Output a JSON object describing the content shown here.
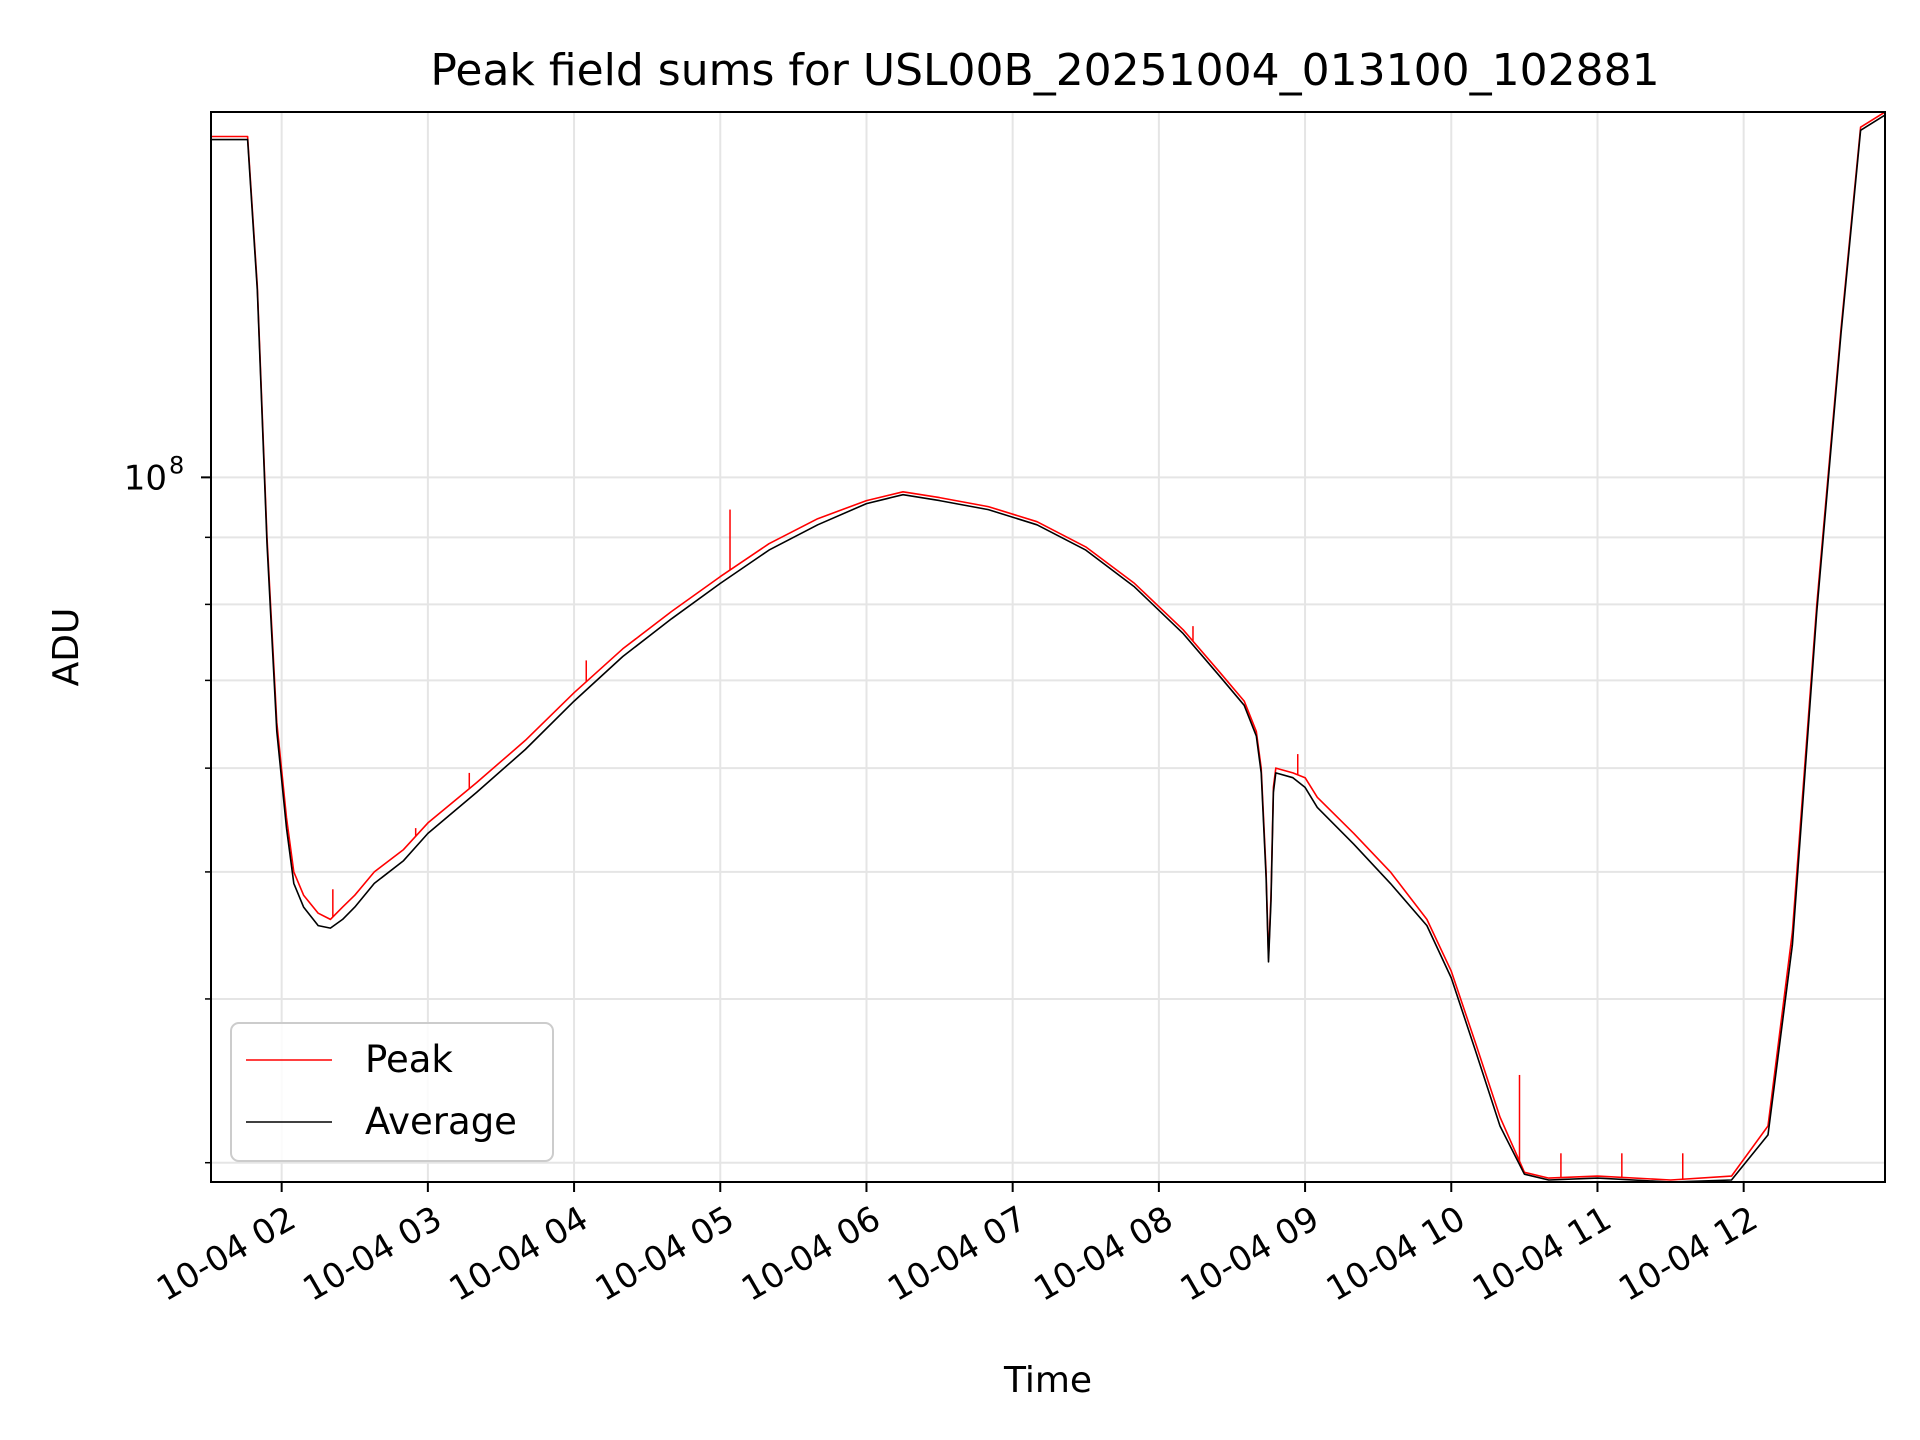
{
  "chart_data": {
    "type": "line",
    "title": "Peak field sums for USL00B_20251004_013100_102881",
    "xlabel": "Time",
    "ylabel": "ADU",
    "yscale": "log",
    "ylim": [
      29000000,
      190000000
    ],
    "xlim": [
      "2025-10-04T01:31",
      "2025-10-04T12:58"
    ],
    "grid": true,
    "legend": {
      "position": "lower-left",
      "entries": [
        "Peak",
        "Average"
      ]
    },
    "x_ticks": [
      {
        "t": "2025-10-04T02:00",
        "label": "10-04 02"
      },
      {
        "t": "2025-10-04T03:00",
        "label": "10-04 03"
      },
      {
        "t": "2025-10-04T04:00",
        "label": "10-04 04"
      },
      {
        "t": "2025-10-04T05:00",
        "label": "10-04 05"
      },
      {
        "t": "2025-10-04T06:00",
        "label": "10-04 06"
      },
      {
        "t": "2025-10-04T07:00",
        "label": "10-04 07"
      },
      {
        "t": "2025-10-04T08:00",
        "label": "10-04 08"
      },
      {
        "t": "2025-10-04T09:00",
        "label": "10-04 09"
      },
      {
        "t": "2025-10-04T10:00",
        "label": "10-04 10"
      },
      {
        "t": "2025-10-04T11:00",
        "label": "10-04 11"
      },
      {
        "t": "2025-10-04T12:00",
        "label": "10-04 12"
      }
    ],
    "y_major_ticks": [
      {
        "v": 100000000,
        "base": "10",
        "exp": "8"
      }
    ],
    "y_minor_ticks": [
      30000000,
      40000000,
      50000000,
      60000000,
      70000000,
      80000000,
      90000000,
      200000000
    ],
    "series": [
      {
        "name": "Peak",
        "color": "#ff0000",
        "points": [
          [
            "2025-10-04T01:31",
            182000000
          ],
          [
            "2025-10-04T01:43",
            182000000
          ],
          [
            "2025-10-04T01:46",
            182000000
          ],
          [
            "2025-10-04T01:50",
            140000000
          ],
          [
            "2025-10-04T01:54",
            90000000
          ],
          [
            "2025-10-04T01:58",
            65000000
          ],
          [
            "2025-10-04T02:02",
            55000000
          ],
          [
            "2025-10-04T02:05",
            50000000
          ],
          [
            "2025-10-04T02:09",
            48000000
          ],
          [
            "2025-10-04T02:15",
            46500000
          ],
          [
            "2025-10-04T02:20",
            46000000
          ],
          [
            "2025-10-04T02:25",
            47000000
          ],
          [
            "2025-10-04T02:30",
            48000000
          ],
          [
            "2025-10-04T02:38",
            50000000
          ],
          [
            "2025-10-04T02:50",
            52000000
          ],
          [
            "2025-10-04T03:00",
            54500000
          ],
          [
            "2025-10-04T03:20",
            58500000
          ],
          [
            "2025-10-04T03:40",
            63000000
          ],
          [
            "2025-10-04T04:00",
            68500000
          ],
          [
            "2025-10-04T04:20",
            74000000
          ],
          [
            "2025-10-04T04:40",
            79000000
          ],
          [
            "2025-10-04T05:00",
            84000000
          ],
          [
            "2025-10-04T05:20",
            89000000
          ],
          [
            "2025-10-04T05:40",
            93000000
          ],
          [
            "2025-10-04T06:00",
            96000000
          ],
          [
            "2025-10-04T06:15",
            97500000
          ],
          [
            "2025-10-04T06:30",
            96500000
          ],
          [
            "2025-10-04T06:50",
            95000000
          ],
          [
            "2025-10-04T07:10",
            92500000
          ],
          [
            "2025-10-04T07:30",
            88500000
          ],
          [
            "2025-10-04T07:50",
            83000000
          ],
          [
            "2025-10-04T08:10",
            76500000
          ],
          [
            "2025-10-04T08:25",
            71000000
          ],
          [
            "2025-10-04T08:35",
            67500000
          ],
          [
            "2025-10-04T08:40",
            64000000
          ],
          [
            "2025-10-04T08:42",
            60000000
          ],
          [
            "2025-10-04T08:44",
            50000000
          ],
          [
            "2025-10-04T08:45",
            43000000
          ],
          [
            "2025-10-04T08:46",
            48000000
          ],
          [
            "2025-10-04T08:47",
            58000000
          ],
          [
            "2025-10-04T08:48",
            60000000
          ],
          [
            "2025-10-04T08:55",
            59500000
          ],
          [
            "2025-10-04T09:00",
            59000000
          ],
          [
            "2025-10-04T09:05",
            57000000
          ],
          [
            "2025-10-04T09:20",
            53500000
          ],
          [
            "2025-10-04T09:35",
            50000000
          ],
          [
            "2025-10-04T09:50",
            46000000
          ],
          [
            "2025-10-04T10:00",
            42000000
          ],
          [
            "2025-10-04T10:10",
            37000000
          ],
          [
            "2025-10-04T10:20",
            32500000
          ],
          [
            "2025-10-04T10:30",
            29500000
          ],
          [
            "2025-10-04T10:40",
            29200000
          ],
          [
            "2025-10-04T11:00",
            29300000
          ],
          [
            "2025-10-04T11:30",
            29100000
          ],
          [
            "2025-10-04T11:55",
            29300000
          ],
          [
            "2025-10-04T12:10",
            32000000
          ],
          [
            "2025-10-04T12:20",
            45000000
          ],
          [
            "2025-10-04T12:30",
            80000000
          ],
          [
            "2025-10-04T12:40",
            130000000
          ],
          [
            "2025-10-04T12:48",
            185000000
          ],
          [
            "2025-10-04T12:58",
            190000000
          ]
        ],
        "spikes": [
          [
            "2025-10-04T02:21",
            48500000
          ],
          [
            "2025-10-04T02:55",
            54000000
          ],
          [
            "2025-10-04T03:17",
            59500000
          ],
          [
            "2025-10-04T04:05",
            72500000
          ],
          [
            "2025-10-04T05:04",
            94500000
          ],
          [
            "2025-10-04T08:14",
            77000000
          ],
          [
            "2025-10-04T08:57",
            61500000
          ],
          [
            "2025-10-04T10:28",
            35000000
          ],
          [
            "2025-10-04T10:45",
            30500000
          ],
          [
            "2025-10-04T11:10",
            30500000
          ],
          [
            "2025-10-04T11:35",
            30500000
          ]
        ]
      },
      {
        "name": "Average",
        "color": "#000000",
        "points": [
          [
            "2025-10-04T01:31",
            181000000
          ],
          [
            "2025-10-04T01:43",
            181000000
          ],
          [
            "2025-10-04T01:46",
            181000000
          ],
          [
            "2025-10-04T01:50",
            139000000
          ],
          [
            "2025-10-04T01:54",
            89000000
          ],
          [
            "2025-10-04T01:58",
            64000000
          ],
          [
            "2025-10-04T02:02",
            54000000
          ],
          [
            "2025-10-04T02:05",
            49000000
          ],
          [
            "2025-10-04T02:09",
            47000000
          ],
          [
            "2025-10-04T02:15",
            45500000
          ],
          [
            "2025-10-04T02:20",
            45300000
          ],
          [
            "2025-10-04T02:25",
            46000000
          ],
          [
            "2025-10-04T02:30",
            47000000
          ],
          [
            "2025-10-04T02:38",
            49000000
          ],
          [
            "2025-10-04T02:50",
            51000000
          ],
          [
            "2025-10-04T03:00",
            53500000
          ],
          [
            "2025-10-04T03:20",
            57500000
          ],
          [
            "2025-10-04T03:40",
            62000000
          ],
          [
            "2025-10-04T04:00",
            67500000
          ],
          [
            "2025-10-04T04:20",
            73000000
          ],
          [
            "2025-10-04T04:40",
            78000000
          ],
          [
            "2025-10-04T05:00",
            83000000
          ],
          [
            "2025-10-04T05:20",
            88000000
          ],
          [
            "2025-10-04T05:40",
            92000000
          ],
          [
            "2025-10-04T06:00",
            95500000
          ],
          [
            "2025-10-04T06:15",
            97000000
          ],
          [
            "2025-10-04T06:30",
            96000000
          ],
          [
            "2025-10-04T06:50",
            94500000
          ],
          [
            "2025-10-04T07:10",
            92000000
          ],
          [
            "2025-10-04T07:30",
            88000000
          ],
          [
            "2025-10-04T07:50",
            82500000
          ],
          [
            "2025-10-04T08:10",
            76000000
          ],
          [
            "2025-10-04T08:25",
            70500000
          ],
          [
            "2025-10-04T08:35",
            67000000
          ],
          [
            "2025-10-04T08:40",
            63500000
          ],
          [
            "2025-10-04T08:42",
            59500000
          ],
          [
            "2025-10-04T08:44",
            49500000
          ],
          [
            "2025-10-04T08:45",
            42700000
          ],
          [
            "2025-10-04T08:46",
            47500000
          ],
          [
            "2025-10-04T08:47",
            57500000
          ],
          [
            "2025-10-04T08:48",
            59500000
          ],
          [
            "2025-10-04T08:55",
            59000000
          ],
          [
            "2025-10-04T09:00",
            58000000
          ],
          [
            "2025-10-04T09:05",
            56000000
          ],
          [
            "2025-10-04T09:20",
            52500000
          ],
          [
            "2025-10-04T09:35",
            49000000
          ],
          [
            "2025-10-04T09:50",
            45500000
          ],
          [
            "2025-10-04T10:00",
            41500000
          ],
          [
            "2025-10-04T10:10",
            36500000
          ],
          [
            "2025-10-04T10:20",
            32000000
          ],
          [
            "2025-10-04T10:30",
            29400000
          ],
          [
            "2025-10-04T10:40",
            29100000
          ],
          [
            "2025-10-04T11:00",
            29200000
          ],
          [
            "2025-10-04T11:30",
            29000000
          ],
          [
            "2025-10-04T11:55",
            29100000
          ],
          [
            "2025-10-04T12:10",
            31500000
          ],
          [
            "2025-10-04T12:20",
            44000000
          ],
          [
            "2025-10-04T12:30",
            79000000
          ],
          [
            "2025-10-04T12:40",
            129000000
          ],
          [
            "2025-10-04T12:48",
            184000000
          ],
          [
            "2025-10-04T12:58",
            189000000
          ]
        ]
      }
    ]
  }
}
